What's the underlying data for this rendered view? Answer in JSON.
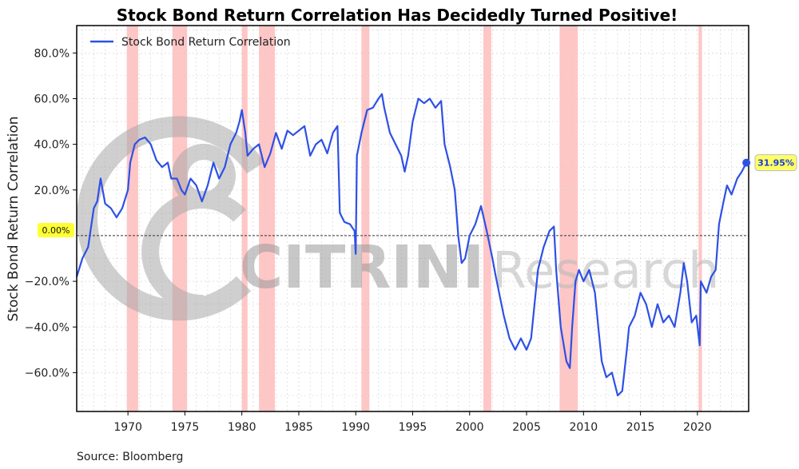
{
  "chart_data": {
    "type": "line",
    "title": "Stock Bond Return Correlation Has Decidedly Turned Positive!",
    "ylabel": "Stock Bond Return Correlation",
    "xlabel": "",
    "source": "Source: Bloomberg",
    "xlim": [
      1965.5,
      2024.5
    ],
    "ylim": [
      -77,
      92
    ],
    "x_ticks": [
      1970,
      1975,
      1980,
      1985,
      1990,
      1995,
      2000,
      2005,
      2010,
      2015,
      2020
    ],
    "x_tick_labels": [
      "1970",
      "1975",
      "1980",
      "1985",
      "1990",
      "1995",
      "2000",
      "2005",
      "2010",
      "2015",
      "2020"
    ],
    "y_ticks": [
      -60,
      -40,
      -20,
      20,
      40,
      60,
      80
    ],
    "y_tick_labels": [
      "−60.0%",
      "−40.0%",
      "−20.0%",
      "20.0%",
      "40.0%",
      "60.0%",
      "80.0%"
    ],
    "zero_label": "0.00%",
    "grid": true,
    "legend_position": "top-left",
    "line_color": "#2e50e6",
    "recession_color": "#ffb3b3",
    "zero_badge_color": "#ffff33",
    "last_badge_color": "#ffff66",
    "recessions": [
      [
        1969.9,
        1970.9
      ],
      [
        1973.9,
        1975.2
      ],
      [
        1980.0,
        1980.5
      ],
      [
        1981.5,
        1982.9
      ],
      [
        1990.5,
        1991.2
      ],
      [
        2001.2,
        2001.9
      ],
      [
        2007.9,
        2009.5
      ],
      [
        2020.1,
        2020.4
      ]
    ],
    "series": [
      {
        "name": "Stock Bond Return Correlation",
        "last_value_label": "31.95%",
        "points": [
          [
            1965.5,
            -18
          ],
          [
            1966.0,
            -10
          ],
          [
            1966.5,
            -5
          ],
          [
            1967.0,
            12
          ],
          [
            1967.3,
            15
          ],
          [
            1967.6,
            25
          ],
          [
            1968.0,
            14
          ],
          [
            1968.5,
            12
          ],
          [
            1969.0,
            8
          ],
          [
            1969.5,
            12
          ],
          [
            1970.0,
            20
          ],
          [
            1970.2,
            32
          ],
          [
            1970.6,
            40
          ],
          [
            1971.0,
            42
          ],
          [
            1971.5,
            43
          ],
          [
            1972.0,
            40
          ],
          [
            1972.5,
            33
          ],
          [
            1973.0,
            30
          ],
          [
            1973.5,
            32
          ],
          [
            1973.8,
            25
          ],
          [
            1974.3,
            25
          ],
          [
            1974.7,
            20
          ],
          [
            1975.0,
            18
          ],
          [
            1975.5,
            25
          ],
          [
            1976.0,
            22
          ],
          [
            1976.5,
            15
          ],
          [
            1977.0,
            22
          ],
          [
            1977.5,
            32
          ],
          [
            1978.0,
            25
          ],
          [
            1978.5,
            30
          ],
          [
            1979.0,
            40
          ],
          [
            1979.5,
            45
          ],
          [
            1979.8,
            50
          ],
          [
            1980.0,
            55
          ],
          [
            1980.3,
            45
          ],
          [
            1980.5,
            35
          ],
          [
            1981.0,
            38
          ],
          [
            1981.5,
            40
          ],
          [
            1982.0,
            30
          ],
          [
            1982.5,
            36
          ],
          [
            1983.0,
            45
          ],
          [
            1983.5,
            38
          ],
          [
            1984.0,
            46
          ],
          [
            1984.5,
            44
          ],
          [
            1985.0,
            46
          ],
          [
            1985.5,
            48
          ],
          [
            1986.0,
            35
          ],
          [
            1986.5,
            40
          ],
          [
            1987.0,
            42
          ],
          [
            1987.5,
            36
          ],
          [
            1988.0,
            45
          ],
          [
            1988.4,
            48
          ],
          [
            1988.6,
            10
          ],
          [
            1989.0,
            6
          ],
          [
            1989.5,
            5
          ],
          [
            1989.9,
            2
          ],
          [
            1990.0,
            -8
          ],
          [
            1990.1,
            35
          ],
          [
            1990.5,
            45
          ],
          [
            1991.0,
            55
          ],
          [
            1991.5,
            56
          ],
          [
            1992.0,
            60
          ],
          [
            1992.3,
            62
          ],
          [
            1992.5,
            56
          ],
          [
            1993.0,
            45
          ],
          [
            1993.5,
            40
          ],
          [
            1994.0,
            35
          ],
          [
            1994.3,
            28
          ],
          [
            1994.6,
            35
          ],
          [
            1995.0,
            50
          ],
          [
            1995.5,
            60
          ],
          [
            1996.0,
            58
          ],
          [
            1996.5,
            60
          ],
          [
            1997.0,
            56
          ],
          [
            1997.5,
            59
          ],
          [
            1997.8,
            40
          ],
          [
            1998.3,
            30
          ],
          [
            1998.7,
            20
          ],
          [
            1999.0,
            0
          ],
          [
            1999.3,
            -12
          ],
          [
            1999.6,
            -10
          ],
          [
            2000.0,
            0
          ],
          [
            2000.5,
            5
          ],
          [
            2001.0,
            13
          ],
          [
            2001.5,
            2
          ],
          [
            2002.0,
            -10
          ],
          [
            2002.3,
            -18
          ],
          [
            2003.0,
            -35
          ],
          [
            2003.5,
            -45
          ],
          [
            2004.0,
            -50
          ],
          [
            2004.5,
            -45
          ],
          [
            2005.0,
            -50
          ],
          [
            2005.4,
            -45
          ],
          [
            2005.7,
            -30
          ],
          [
            2006.0,
            -15
          ],
          [
            2006.5,
            -5
          ],
          [
            2007.0,
            2
          ],
          [
            2007.4,
            4
          ],
          [
            2007.6,
            -15
          ],
          [
            2008.0,
            -40
          ],
          [
            2008.5,
            -55
          ],
          [
            2008.8,
            -58
          ],
          [
            2009.0,
            -40
          ],
          [
            2009.3,
            -20
          ],
          [
            2009.6,
            -15
          ],
          [
            2010.0,
            -20
          ],
          [
            2010.5,
            -15
          ],
          [
            2011.0,
            -25
          ],
          [
            2011.3,
            -40
          ],
          [
            2011.6,
            -55
          ],
          [
            2012.0,
            -62
          ],
          [
            2012.5,
            -60
          ],
          [
            2013.0,
            -70
          ],
          [
            2013.4,
            -68
          ],
          [
            2013.8,
            -50
          ],
          [
            2014.0,
            -40
          ],
          [
            2014.5,
            -35
          ],
          [
            2015.0,
            -25
          ],
          [
            2015.5,
            -30
          ],
          [
            2016.0,
            -40
          ],
          [
            2016.5,
            -30
          ],
          [
            2017.0,
            -38
          ],
          [
            2017.5,
            -35
          ],
          [
            2018.0,
            -40
          ],
          [
            2018.5,
            -25
          ],
          [
            2018.8,
            -12
          ],
          [
            2019.1,
            -20
          ],
          [
            2019.5,
            -38
          ],
          [
            2019.9,
            -35
          ],
          [
            2020.2,
            -48
          ],
          [
            2020.3,
            -20
          ],
          [
            2020.8,
            -25
          ],
          [
            2021.2,
            -18
          ],
          [
            2021.6,
            -15
          ],
          [
            2021.9,
            5
          ],
          [
            2022.3,
            15
          ],
          [
            2022.6,
            22
          ],
          [
            2023.0,
            18
          ],
          [
            2023.5,
            25
          ],
          [
            2023.9,
            28
          ],
          [
            2024.3,
            31.95
          ]
        ]
      }
    ]
  },
  "watermark": {
    "brand_bold": "CITRINI",
    "brand_light": "Research"
  }
}
